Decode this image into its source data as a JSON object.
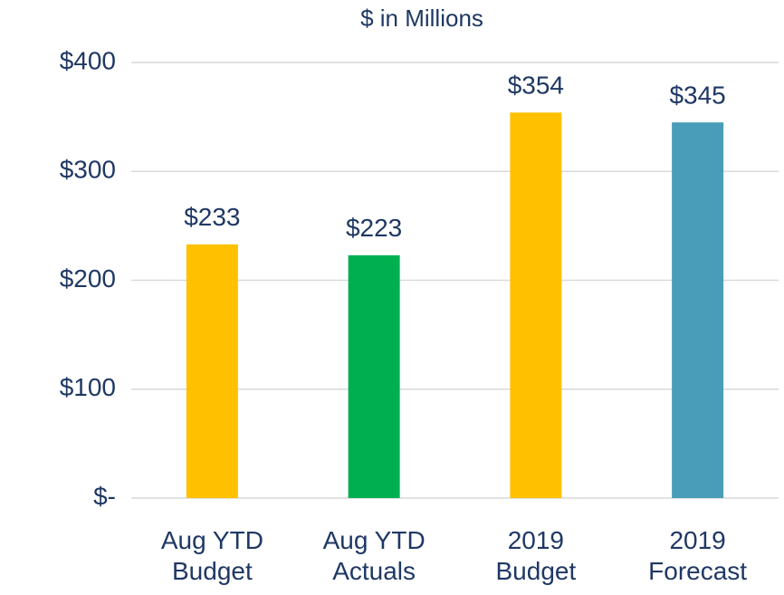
{
  "chart_data": {
    "type": "bar",
    "title": "$ in Millions",
    "categories": [
      "Aug YTD\nBudget",
      "Aug YTD\nActuals",
      "2019\nBudget",
      "2019\nForecast"
    ],
    "values": [
      233,
      223,
      354,
      345
    ],
    "value_labels": [
      "$233",
      "$223",
      "$354",
      "$345"
    ],
    "colors": [
      "#ffc000",
      "#00b050",
      "#ffc000",
      "#4a9db8"
    ],
    "ylim": [
      0,
      400
    ],
    "yticks": [
      {
        "value": 0,
        "label": "$-"
      },
      {
        "value": 100,
        "label": "$100"
      },
      {
        "value": 200,
        "label": "$200"
      },
      {
        "value": 300,
        "label": "$300"
      },
      {
        "value": 400,
        "label": "$400"
      }
    ],
    "grid": true
  }
}
